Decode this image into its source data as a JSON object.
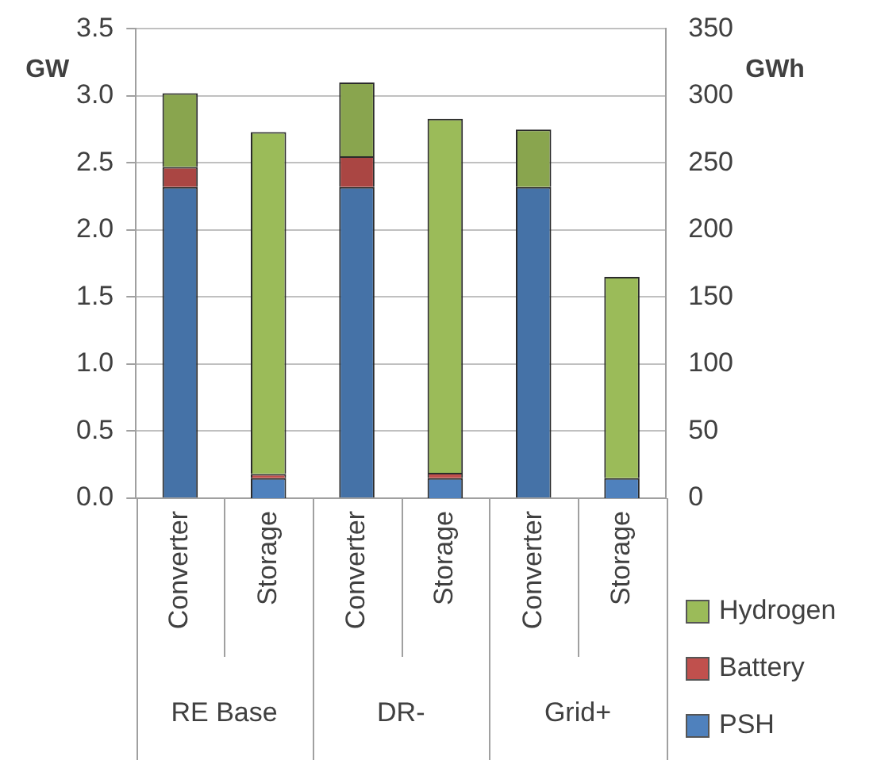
{
  "chart_data": {
    "type": "bar",
    "stacked": true,
    "categories": [
      "Converter",
      "Storage",
      "Converter",
      "Storage",
      "Converter",
      "Storage"
    ],
    "annotations": [
      "RE Base",
      "DR-",
      "Grid+"
    ],
    "ylabel": "GW",
    "y2label": "GWh",
    "ylim": [
      0,
      3.5
    ],
    "yticks": [
      {
        "value": 0,
        "label": "0.0"
      },
      {
        "value": 0.5,
        "label": "0.5"
      },
      {
        "value": 1,
        "label": "1.0"
      },
      {
        "value": 1.5,
        "label": "1.5"
      },
      {
        "value": 2,
        "label": "2.0"
      },
      {
        "value": 2.5,
        "label": "2.5"
      },
      {
        "value": 3,
        "label": "3.0"
      },
      {
        "value": 3.5,
        "label": "3.5"
      }
    ],
    "y2lim": [
      0,
      350
    ],
    "y2ticks": [
      0,
      50,
      100,
      150,
      200,
      250,
      300,
      350
    ],
    "grid": "y",
    "legend": "bottom right",
    "series": [
      {
        "color": "#4572a7",
        "values": [
          2.32,
          null,
          2.32,
          null,
          2.32,
          null
        ]
      },
      {
        "color": "#aa4643",
        "values": [
          0.15,
          null,
          0.23,
          null,
          0,
          null
        ]
      },
      {
        "color": "#89a54e",
        "values": [
          0.55,
          null,
          0.55,
          null,
          0.43,
          null
        ]
      },
      {
        "name": "PSH",
        "color": "#4f81bd",
        "axis": "y2",
        "values": [
          null,
          15,
          null,
          15,
          null,
          15
        ]
      },
      {
        "name": "Battery",
        "color": "#c0504d",
        "axis": "y2",
        "values": [
          null,
          3,
          null,
          4,
          null,
          null
        ]
      },
      {
        "name": "Hydrogen",
        "color": "#9bbb59",
        "axis": "y2",
        "values": [
          null,
          255,
          null,
          264,
          null,
          150
        ]
      }
    ]
  }
}
